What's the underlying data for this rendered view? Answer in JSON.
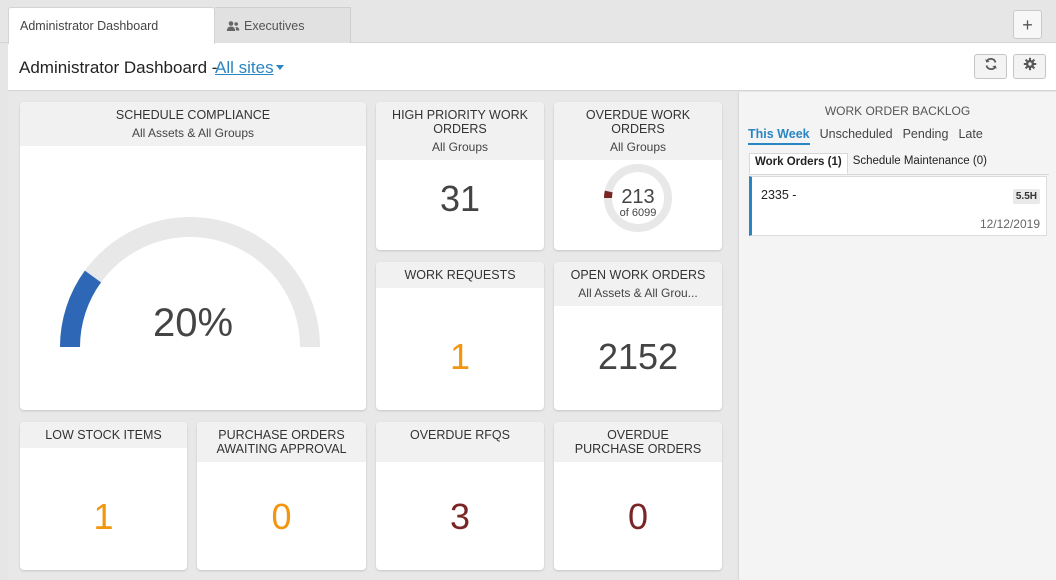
{
  "tabs": [
    {
      "label": "Administrator Dashboard",
      "active": true
    },
    {
      "label": "Executives",
      "icon": "users-icon",
      "active": false
    }
  ],
  "add_tab_icon": "plus-icon",
  "header": {
    "title": "Administrator Dashboard -",
    "site_selector": "All sites",
    "buttons": [
      {
        "name": "refresh",
        "icon": "refresh-icon"
      },
      {
        "name": "settings",
        "icon": "gear-icon"
      }
    ]
  },
  "colors": {
    "accent_blue": "#2a86c2",
    "gauge_fill": "#2d67b5",
    "orange": "#f3960f",
    "maroon": "#7a2525"
  },
  "widgets": {
    "schedule_compliance": {
      "title": "SCHEDULE COMPLIANCE",
      "subtitle": "All Assets & All Groups",
      "value": "20%",
      "fraction": 0.2
    },
    "high_priority": {
      "title": "HIGH PRIORITY WORK ORDERS",
      "subtitle": "All Groups",
      "value": "31"
    },
    "overdue_wo": {
      "title": "OVERDUE WORK ORDERS",
      "subtitle": "All Groups",
      "value": "213",
      "of_text": "of 6099",
      "fraction": 0.0349
    },
    "work_requests": {
      "title": "WORK REQUESTS",
      "value": "1"
    },
    "open_wo": {
      "title": "OPEN WORK ORDERS",
      "subtitle": "All Assets & All Grou...",
      "value": "2152"
    },
    "low_stock": {
      "title": "LOW STOCK ITEMS",
      "value": "1"
    },
    "po_awaiting": {
      "title": "PURCHASE ORDERS AWAITING APPROVAL",
      "value": "0"
    },
    "overdue_rfqs": {
      "title": "OVERDUE RFQS",
      "value": "3"
    },
    "overdue_po": {
      "title": "OVERDUE PURCHASE ORDERS",
      "value": "0"
    }
  },
  "backlog": {
    "title": "WORK ORDER BACKLOG",
    "tabs": [
      "This Week",
      "Unscheduled",
      "Pending",
      "Late"
    ],
    "active_tab": "This Week",
    "sub_tabs": [
      "Work Orders (1)",
      "Schedule Maintenance (0)"
    ],
    "items": [
      {
        "id": "2335 -",
        "hours": "5.5H",
        "date": "12/12/2019"
      }
    ]
  }
}
